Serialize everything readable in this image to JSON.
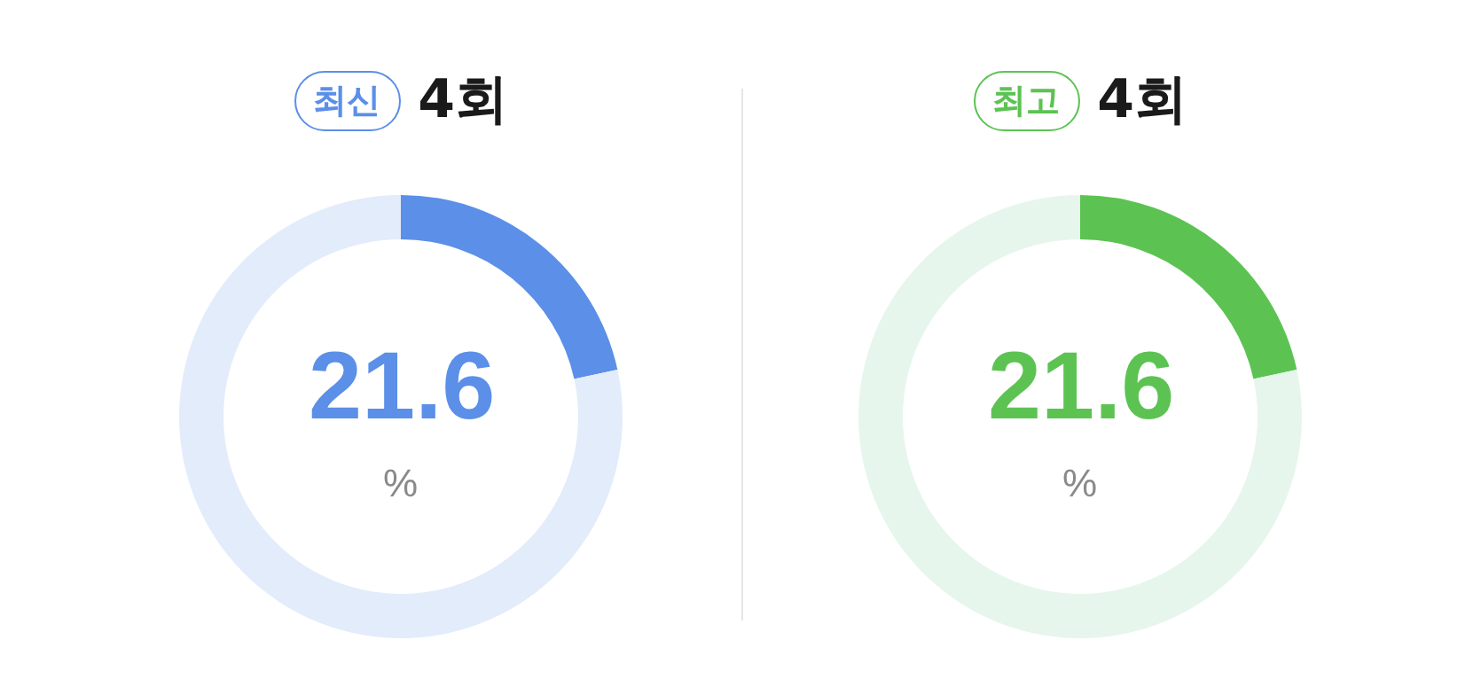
{
  "chart_data": [
    {
      "type": "donut",
      "subtitle": "최신",
      "title": "4회",
      "categories": [
        null,
        null
      ],
      "values": [
        21.6,
        78.4
      ],
      "colors": [
        "#5b8fe8",
        "#e3ecfb"
      ],
      "value_labels": [
        "21.6",
        null
      ],
      "annotations": [
        "%"
      ]
    },
    {
      "type": "donut",
      "subtitle": "최고",
      "title": "4회",
      "categories": [
        null,
        null
      ],
      "values": [
        21.6,
        78.4
      ],
      "colors": [
        "#5cc353",
        "#e6f6ec"
      ],
      "value_labels": [
        "21.6",
        null
      ],
      "annotations": [
        "%"
      ]
    }
  ]
}
